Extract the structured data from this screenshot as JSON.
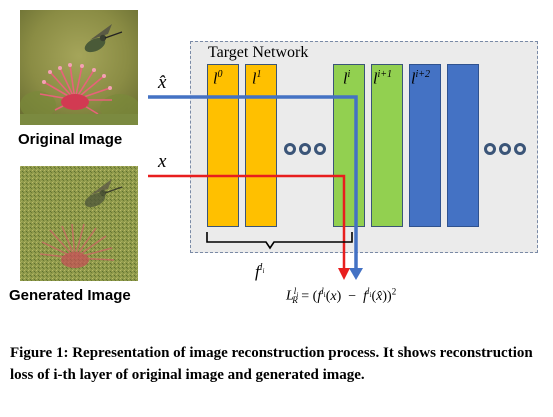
{
  "images": {
    "original_label": "Original Image",
    "generated_label": "Generated Image"
  },
  "network": {
    "title": "Target Network",
    "input_original": "x̂",
    "input_generated": "x",
    "layers": [
      {
        "label": "l",
        "sup": "0",
        "color": "orange"
      },
      {
        "label": "l",
        "sup": "1",
        "color": "orange"
      },
      {
        "label": "l",
        "sup": "i",
        "color": "green"
      },
      {
        "label": "l",
        "sup": "i+1",
        "color": "green"
      },
      {
        "label": "l",
        "sup": "i+2",
        "color": "blue"
      },
      {
        "label": "",
        "sup": "",
        "color": "blue"
      }
    ],
    "brace_label_base": "f",
    "brace_label_sup": "l",
    "brace_label_sub": "i"
  },
  "colors": {
    "orange": "#ffc000",
    "green": "#92d050",
    "blue": "#4472c4",
    "red_arrow": "#e81e1e",
    "blue_arrow": "#4472c4"
  },
  "formula": {
    "lhs": "L",
    "lhs_sup": "l",
    "lhs_sup_sub": "i",
    "lhs_sub": "R",
    "rhs": "= (f^{l_i}(x) − f^{l_i}(x̂))²"
  },
  "caption": "Figure 1: Representation of image reconstruction process. It shows reconstruction loss of i-th layer of original image and generated image."
}
